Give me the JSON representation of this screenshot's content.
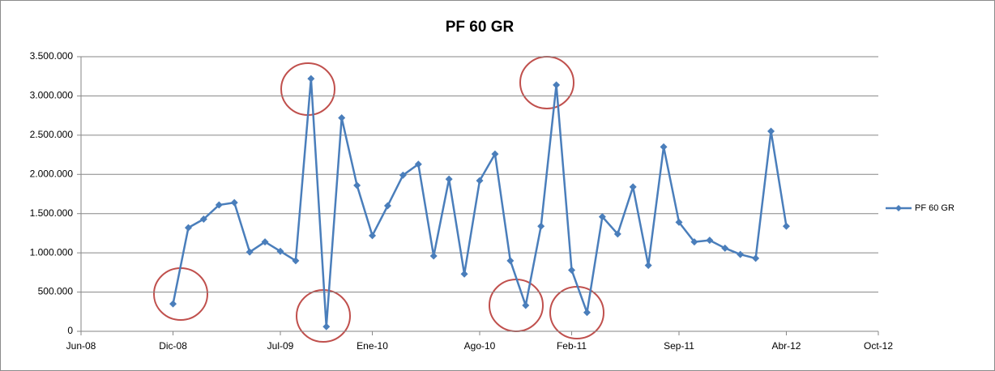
{
  "chart_data": {
    "type": "line",
    "title": "PF 60 GR",
    "x": [
      "2008-12",
      "2009-01",
      "2009-02",
      "2009-03",
      "2009-04",
      "2009-05",
      "2009-06",
      "2009-07",
      "2009-08",
      "2009-09",
      "2009-10",
      "2009-11",
      "2009-12",
      "2010-01",
      "2010-02",
      "2010-03",
      "2010-04",
      "2010-05",
      "2010-06",
      "2010-07",
      "2010-08",
      "2010-09",
      "2010-10",
      "2010-11",
      "2010-12",
      "2011-01",
      "2011-02",
      "2011-03",
      "2011-04",
      "2011-05",
      "2011-06",
      "2011-07",
      "2011-08",
      "2011-09",
      "2011-10",
      "2011-11",
      "2011-12",
      "2012-01",
      "2012-02",
      "2012-03",
      "2012-04"
    ],
    "series": [
      {
        "name": "PF 60 GR",
        "color": "#4a7ebb",
        "values": [
          350000,
          1320000,
          1430000,
          1610000,
          1640000,
          1010000,
          1140000,
          1020000,
          900000,
          3220000,
          60000,
          2720000,
          1860000,
          1220000,
          1600000,
          1990000,
          2130000,
          960000,
          1940000,
          730000,
          1920000,
          2260000,
          900000,
          330000,
          1340000,
          3140000,
          780000,
          240000,
          1460000,
          1240000,
          1840000,
          840000,
          2350000,
          1390000,
          1140000,
          1160000,
          1060000,
          980000,
          930000,
          2550000,
          1340000
        ]
      }
    ],
    "xlim": [
      "2008-06",
      "2012-10"
    ],
    "xticks": [
      {
        "value": "2008-06",
        "label": "Jun-08"
      },
      {
        "value": "2008-12",
        "label": "Dic-08"
      },
      {
        "value": "2009-07",
        "label": "Jul-09"
      },
      {
        "value": "2010-01",
        "label": "Ene-10"
      },
      {
        "value": "2010-08",
        "label": "Ago-10"
      },
      {
        "value": "2011-02",
        "label": "Feb-11"
      },
      {
        "value": "2011-09",
        "label": "Sep-11"
      },
      {
        "value": "2012-04",
        "label": "Abr-12"
      },
      {
        "value": "2012-10",
        "label": "Oct-12"
      }
    ],
    "ylim": [
      0,
      3500000
    ],
    "yticks": [
      0,
      {
        "value": 500000,
        "label": "500.000"
      },
      {
        "value": 1000000,
        "label": "1.000.000"
      },
      {
        "value": 1500000,
        "label": "1.500.000"
      },
      {
        "value": 2000000,
        "label": "2.000.000"
      },
      {
        "value": 2500000,
        "label": "2.500.000"
      },
      {
        "value": 3000000,
        "label": "3.000.000"
      },
      {
        "value": 3500000,
        "label": "3.500.000"
      }
    ],
    "grid": true,
    "legend": "right"
  }
}
